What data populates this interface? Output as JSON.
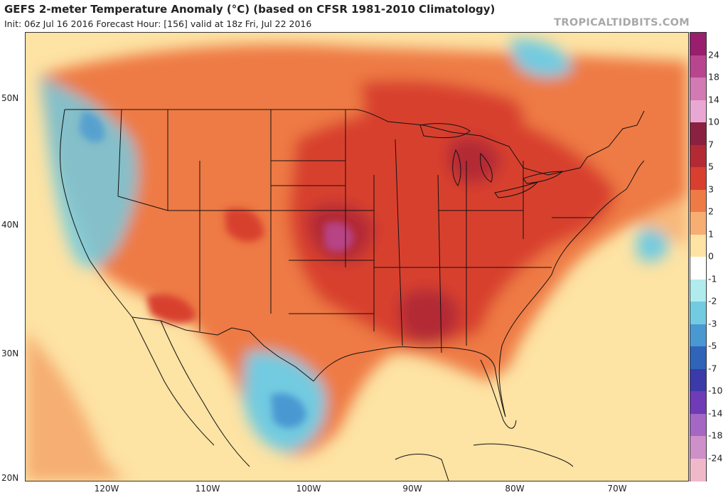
{
  "header": {
    "title": "GEFS 2-meter Temperature Anomaly (°C) (based on CFSR 1981-2010 Climatology)",
    "subtitle": "Init: 06z Jul 16 2016   Forecast Hour: [156]   valid at 18z Fri, Jul 22 2016",
    "brand": "TROPICALTIDBITS.COM"
  },
  "axes": {
    "lat_labels": [
      "50N",
      "40N",
      "30N",
      "20N"
    ],
    "lon_labels": [
      "120W",
      "110W",
      "100W",
      "90W",
      "80W",
      "70W"
    ]
  },
  "colorbar": {
    "labels": [
      "24",
      "18",
      "14",
      "10",
      "7",
      "5",
      "3",
      "2",
      "1",
      "0",
      "-1",
      "-2",
      "-3",
      "-5",
      "-7",
      "-10",
      "-14",
      "-18",
      "-24"
    ],
    "colors": [
      "#9a1e6e",
      "#b8468e",
      "#d27ab4",
      "#e9a8d4",
      "#8b2140",
      "#b32a35",
      "#d83f2e",
      "#ee7a45",
      "#f6ae72",
      "#fde3a4",
      "#ffffff",
      "#b0ecee",
      "#72cbe0",
      "#4a98d2",
      "#2f64b8",
      "#3b3aa8",
      "#6f3bb6",
      "#a467c4",
      "#cf8fc8",
      "#f0b9c9"
    ]
  },
  "map": {
    "field": "2-meter temperature anomaly",
    "units": "°C",
    "colors": {
      "ocean_near_normal": "#fde3a4",
      "light_warm": "#f6ae72",
      "warm": "#ee7a45",
      "hot": "#d83f2e",
      "very_hot": "#b32a35",
      "extreme": "#b8468e",
      "cool": "#72cbe0",
      "cold": "#4a98d2",
      "very_cold": "#2f64b8",
      "border_line": "#111111"
    }
  }
}
